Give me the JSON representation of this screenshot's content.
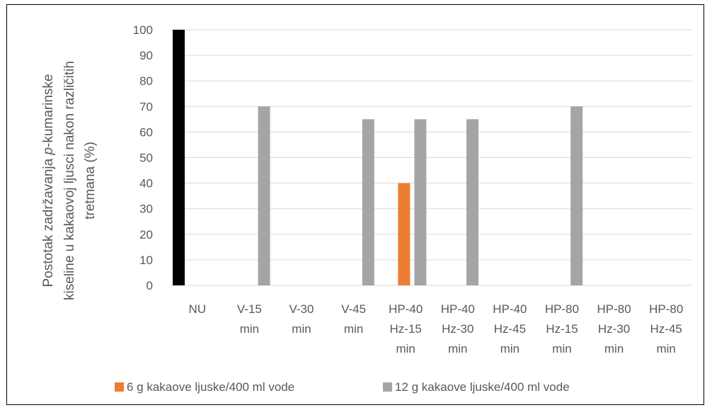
{
  "chart_data": {
    "type": "bar",
    "categories": [
      [
        "NU"
      ],
      [
        "V-15",
        "min"
      ],
      [
        "V-30",
        "min"
      ],
      [
        "V-45",
        "min"
      ],
      [
        "HP-40",
        "Hz-15",
        "min"
      ],
      [
        "HP-40",
        "Hz-30",
        "min"
      ],
      [
        "HP-40",
        "Hz-45",
        "min"
      ],
      [
        "HP-80",
        "Hz-15",
        "min"
      ],
      [
        "HP-80",
        "Hz-30",
        "min"
      ],
      [
        "HP-80",
        "Hz-45",
        "min"
      ]
    ],
    "baseline": {
      "values": [
        100,
        null,
        null,
        null,
        null,
        null,
        null,
        null,
        null,
        null
      ],
      "color": "#000000"
    },
    "series": [
      {
        "name": "6 g kakaove ljuske/400 ml vode",
        "color": "#ED7D31",
        "values": [
          null,
          null,
          null,
          null,
          40,
          null,
          null,
          null,
          null,
          null
        ]
      },
      {
        "name": "12 g kakaove ljuske/400 ml vode",
        "color": "#A5A5A5",
        "values": [
          null,
          70,
          null,
          65,
          65,
          65,
          null,
          70,
          null,
          null
        ]
      }
    ],
    "ylabel_lines": [
      [
        "Postotak zadržavanja ",
        "p",
        "-kumarinske"
      ],
      [
        "kiseline u kakaovoj ljusci nakon različitih"
      ],
      [
        "tretmana (%)"
      ]
    ],
    "ylim": [
      0,
      100
    ],
    "yticks": [
      0,
      10,
      20,
      30,
      40,
      50,
      60,
      70,
      80,
      90,
      100
    ],
    "grid": true,
    "gridline_color": "#D9D9D9",
    "legend_position": "bottom"
  }
}
